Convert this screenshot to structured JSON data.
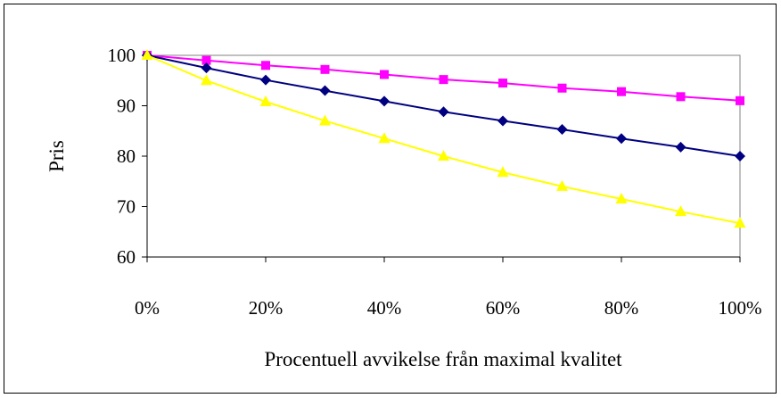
{
  "chart_data": {
    "type": "line",
    "title": "",
    "xlabel": "Procentuell avvikelse från maximal kvalitet",
    "ylabel": "Pris",
    "x": [
      0,
      10,
      20,
      30,
      40,
      50,
      60,
      70,
      80,
      90,
      100
    ],
    "xlim": [
      0,
      100
    ],
    "ylim": [
      60,
      100
    ],
    "x_ticks": [
      0,
      20,
      40,
      60,
      80,
      100
    ],
    "x_tick_labels": [
      "0%",
      "20%",
      "40%",
      "60%",
      "80%",
      "100%"
    ],
    "y_ticks": [
      60,
      70,
      80,
      90,
      100
    ],
    "y_tick_labels": [
      "60",
      "70",
      "80",
      "90",
      "100"
    ],
    "grid": false,
    "legend": "none",
    "plot_background": "#ffffff",
    "series": [
      {
        "color": "#ff00ff",
        "marker": "square",
        "values": [
          100,
          99,
          98,
          97.2,
          96.2,
          95.2,
          94.5,
          93.5,
          92.8,
          91.8,
          91
        ]
      },
      {
        "color": "#000080",
        "marker": "diamond",
        "values": [
          100,
          97.5,
          95.1,
          93,
          90.9,
          88.8,
          87,
          85.3,
          83.5,
          81.8,
          80
        ]
      },
      {
        "color": "#ffff00",
        "marker": "triangle",
        "values": [
          100,
          95,
          90.8,
          87,
          83.5,
          80,
          76.8,
          74,
          71.5,
          69,
          66.7
        ]
      }
    ]
  }
}
